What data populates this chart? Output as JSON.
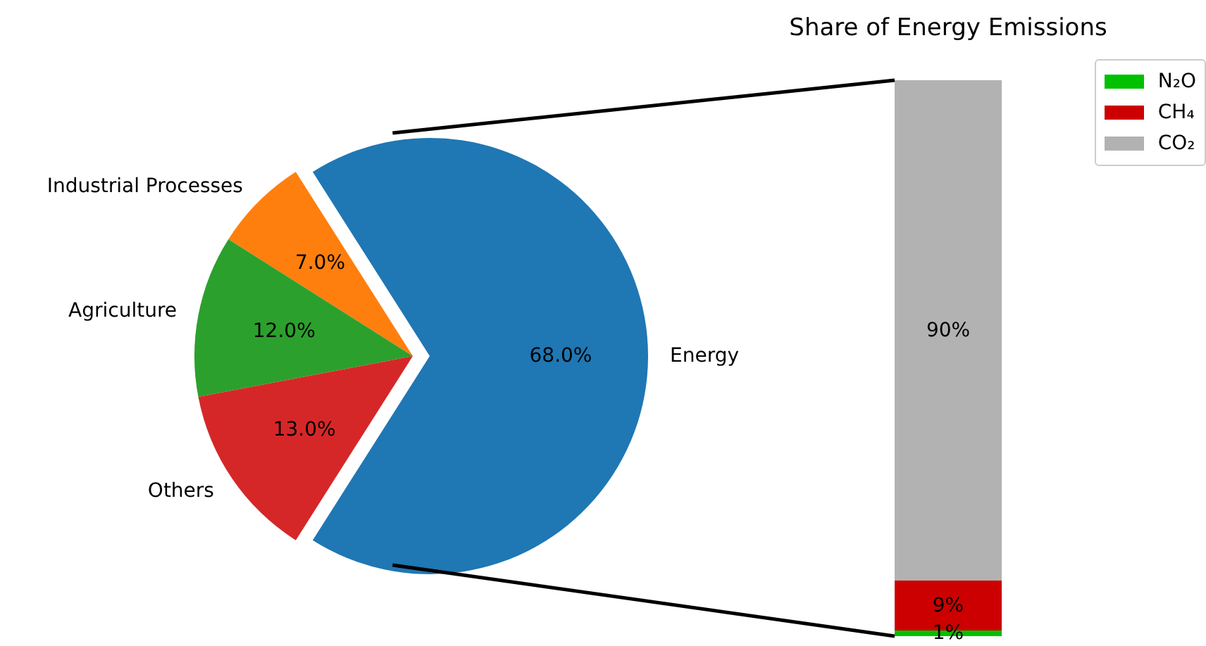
{
  "chart_data": [
    {
      "type": "pie",
      "categories": [
        "Energy",
        "Industrial Processes",
        "Agriculture",
        "Others"
      ],
      "values": [
        68,
        7,
        12,
        13
      ],
      "colors": [
        "#1f77b4",
        "#ff7f0e",
        "#2ca02c",
        "#d62728"
      ],
      "value_labels": [
        "68.0%",
        "7.0%",
        "12.0%",
        "13.0%"
      ]
    },
    {
      "type": "bar",
      "title": "Share of Energy Emissions",
      "stacked": true,
      "categories": [
        null
      ],
      "legend": "top right",
      "series": [
        {
          "name": "N₂O",
          "color": "#00c000",
          "values": [
            1
          ],
          "value_labels": [
            "1%"
          ]
        },
        {
          "name": "CH₄",
          "color": "#cc0000",
          "values": [
            9
          ],
          "value_labels": [
            "9%"
          ]
        },
        {
          "name": "CO₂",
          "color": "#b2b2b2",
          "values": [
            90
          ],
          "value_labels": [
            "90%"
          ]
        }
      ]
    }
  ]
}
